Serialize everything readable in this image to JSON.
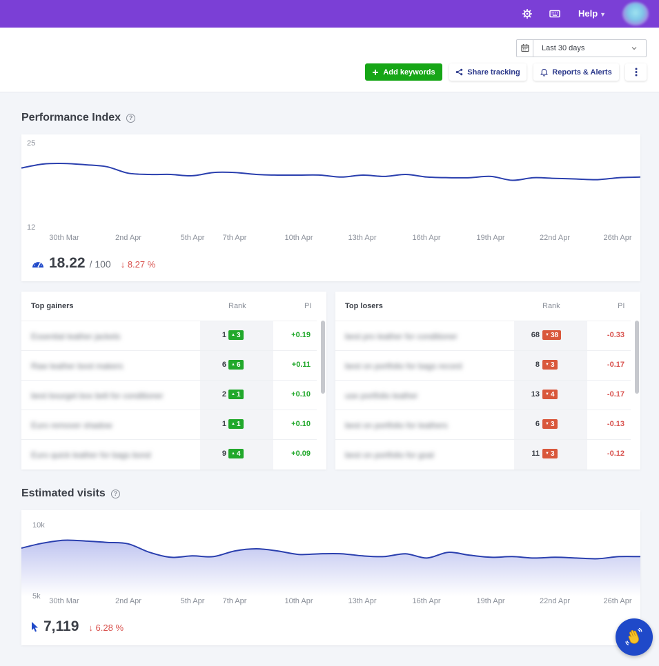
{
  "topbar": {
    "help_label": "Help",
    "icons": [
      "settings-icon",
      "keyboard-icon",
      "chevron-down-icon"
    ],
    "color": "#7b3fd6"
  },
  "header": {
    "date_range": "Last 30 days",
    "add_keywords_label": "Add keywords",
    "share_tracking_label": "Share tracking",
    "reports_alerts_label": "Reports & Alerts"
  },
  "performance_index": {
    "title": "Performance Index",
    "value": "18.22",
    "out_of": "/ 100",
    "delta": "8.27 %",
    "delta_direction": "down",
    "chart_data": {
      "type": "line",
      "x_labels": [
        "30th Mar",
        "2nd Apr",
        "5th Apr",
        "7th Apr",
        "10th Apr",
        "13th Apr",
        "16th Apr",
        "19th Apr",
        "22nd Apr",
        "26th Apr"
      ],
      "ylim": [
        12,
        25
      ],
      "y_tick_labels": [
        "25",
        "12"
      ],
      "values": [
        21.2,
        21.8,
        21.9,
        21.7,
        21.4,
        20.4,
        20.2,
        20.2,
        20.0,
        20.5,
        20.5,
        20.2,
        20.1,
        20.1,
        20.1,
        19.8,
        20.1,
        19.9,
        20.2,
        19.8,
        19.7,
        19.7,
        19.9,
        19.3,
        19.7,
        19.6,
        19.5,
        19.4,
        19.7,
        19.8
      ],
      "color": "#2a3fae"
    }
  },
  "top_gainers": {
    "title": "Top gainers",
    "rank_label": "Rank",
    "pi_label": "PI",
    "rows": [
      {
        "keyword": "Essential leather jackets",
        "rank": "1",
        "change": "3",
        "pi": "+0.19"
      },
      {
        "keyword": "Raw leather boot makers",
        "rank": "6",
        "change": "6",
        "pi": "+0.11"
      },
      {
        "keyword": "best bourget box belt for conditioner",
        "rank": "2",
        "change": "1",
        "pi": "+0.10"
      },
      {
        "keyword": "Euro remover shadow",
        "rank": "1",
        "change": "1",
        "pi": "+0.10"
      },
      {
        "keyword": "Euro quick leather for bags bond",
        "rank": "9",
        "change": "4",
        "pi": "+0.09"
      }
    ]
  },
  "top_losers": {
    "title": "Top losers",
    "rank_label": "Rank",
    "pi_label": "PI",
    "rows": [
      {
        "keyword": "best pro leather for conditioner",
        "rank": "68",
        "change": "38",
        "pi": "-0.33"
      },
      {
        "keyword": "best on portfolio for bags record",
        "rank": "8",
        "change": "3",
        "pi": "-0.17"
      },
      {
        "keyword": "use portfolio leather",
        "rank": "13",
        "change": "4",
        "pi": "-0.17"
      },
      {
        "keyword": "best on portfolio for leathers",
        "rank": "6",
        "change": "3",
        "pi": "-0.13"
      },
      {
        "keyword": "best on portfolio for goal",
        "rank": "11",
        "change": "3",
        "pi": "-0.12"
      }
    ]
  },
  "estimated_visits": {
    "title": "Estimated visits",
    "value": "7,119",
    "delta": "6.28 %",
    "delta_direction": "down",
    "chart_data": {
      "type": "area",
      "x_labels": [
        "30th Mar",
        "2nd Apr",
        "5th Apr",
        "7th Apr",
        "10th Apr",
        "13th Apr",
        "16th Apr",
        "19th Apr",
        "22nd Apr",
        "26th Apr"
      ],
      "ylim": [
        5000,
        10000
      ],
      "y_tick_labels": [
        "10k",
        "5k"
      ],
      "values": [
        8400,
        8750,
        8950,
        8900,
        8800,
        8700,
        8100,
        7750,
        7850,
        7800,
        8200,
        8350,
        8200,
        7950,
        8000,
        8000,
        7850,
        7800,
        8000,
        7700,
        8100,
        7900,
        7750,
        7800,
        7700,
        7750,
        7700,
        7650,
        7800,
        7800
      ],
      "color": "#2a3fae"
    }
  }
}
